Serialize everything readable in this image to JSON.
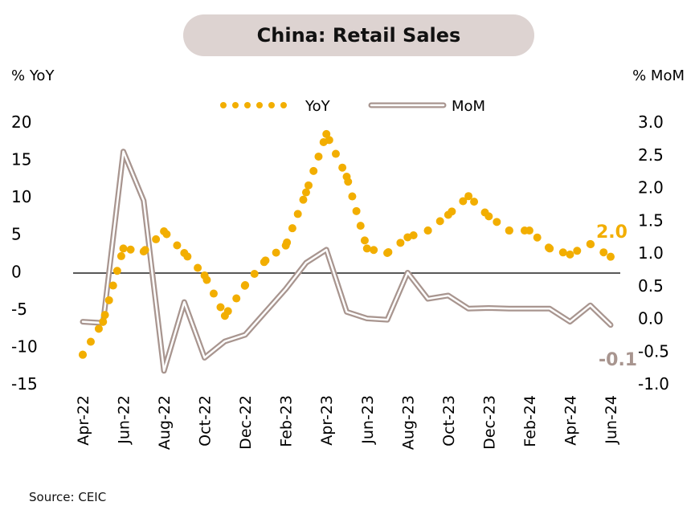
{
  "title": "China: Retail Sales",
  "source": "Source: CEIC",
  "chart_data": {
    "type": "line",
    "title": "China: Retail Sales",
    "ylabel_left": "% YoY",
    "ylabel_right": "% MoM",
    "ylim_left": [
      -15,
      20
    ],
    "ylim_right": [
      -1.0,
      3.0
    ],
    "yticks_left": [
      "20",
      "15",
      "10",
      "5",
      "0",
      "-5",
      "-10",
      "-15"
    ],
    "yticks_right": [
      "3.0",
      "2.5",
      "2.0",
      "1.5",
      "1.0",
      "0.5",
      "0.0",
      "-0.5",
      "-1.0"
    ],
    "x": [
      "Apr-22",
      "May-22",
      "Jun-22",
      "Jul-22",
      "Aug-22",
      "Sep-22",
      "Oct-22",
      "Nov-22",
      "Dec-22",
      "Jan-23",
      "Feb-23",
      "Mar-23",
      "Apr-23",
      "May-23",
      "Jun-23",
      "Jul-23",
      "Aug-23",
      "Sep-23",
      "Oct-23",
      "Nov-23",
      "Dec-23",
      "Jan-24",
      "Feb-24",
      "Mar-24",
      "Apr-24",
      "May-24",
      "Jun-24"
    ],
    "xtick_labels": [
      "Apr-22",
      "Jun-22",
      "Aug-22",
      "Oct-22",
      "Dec-22",
      "Feb-23",
      "Apr-23",
      "Jun-23",
      "Aug-23",
      "Oct-23",
      "Dec-23",
      "Feb-24",
      "Apr-24",
      "Jun-24"
    ],
    "series": [
      {
        "name": "YoY",
        "axis": "left",
        "style": "dotted",
        "color": "#f2ae00",
        "values": [
          -11.1,
          -6.7,
          3.1,
          2.7,
          5.4,
          2.5,
          -0.5,
          -5.9,
          -1.8,
          1.5,
          3.5,
          10.6,
          18.4,
          12.7,
          3.1,
          2.5,
          4.6,
          5.5,
          7.6,
          10.1,
          7.4,
          5.5,
          5.5,
          3.1,
          2.3,
          3.7,
          2.0
        ],
        "end_label": "2.0"
      },
      {
        "name": "MoM",
        "axis": "right",
        "style": "double-line",
        "color": "#a8958f",
        "values": [
          -0.05,
          -0.07,
          2.55,
          1.8,
          -0.8,
          0.25,
          -0.6,
          -0.35,
          -0.25,
          0.1,
          0.45,
          0.85,
          1.05,
          0.1,
          0.0,
          -0.02,
          0.7,
          0.3,
          0.35,
          0.15,
          0.16,
          0.15,
          0.15,
          0.15,
          -0.05,
          0.2,
          -0.1
        ],
        "end_label": "-0.1"
      }
    ],
    "legend": "top-center",
    "grid": false
  }
}
